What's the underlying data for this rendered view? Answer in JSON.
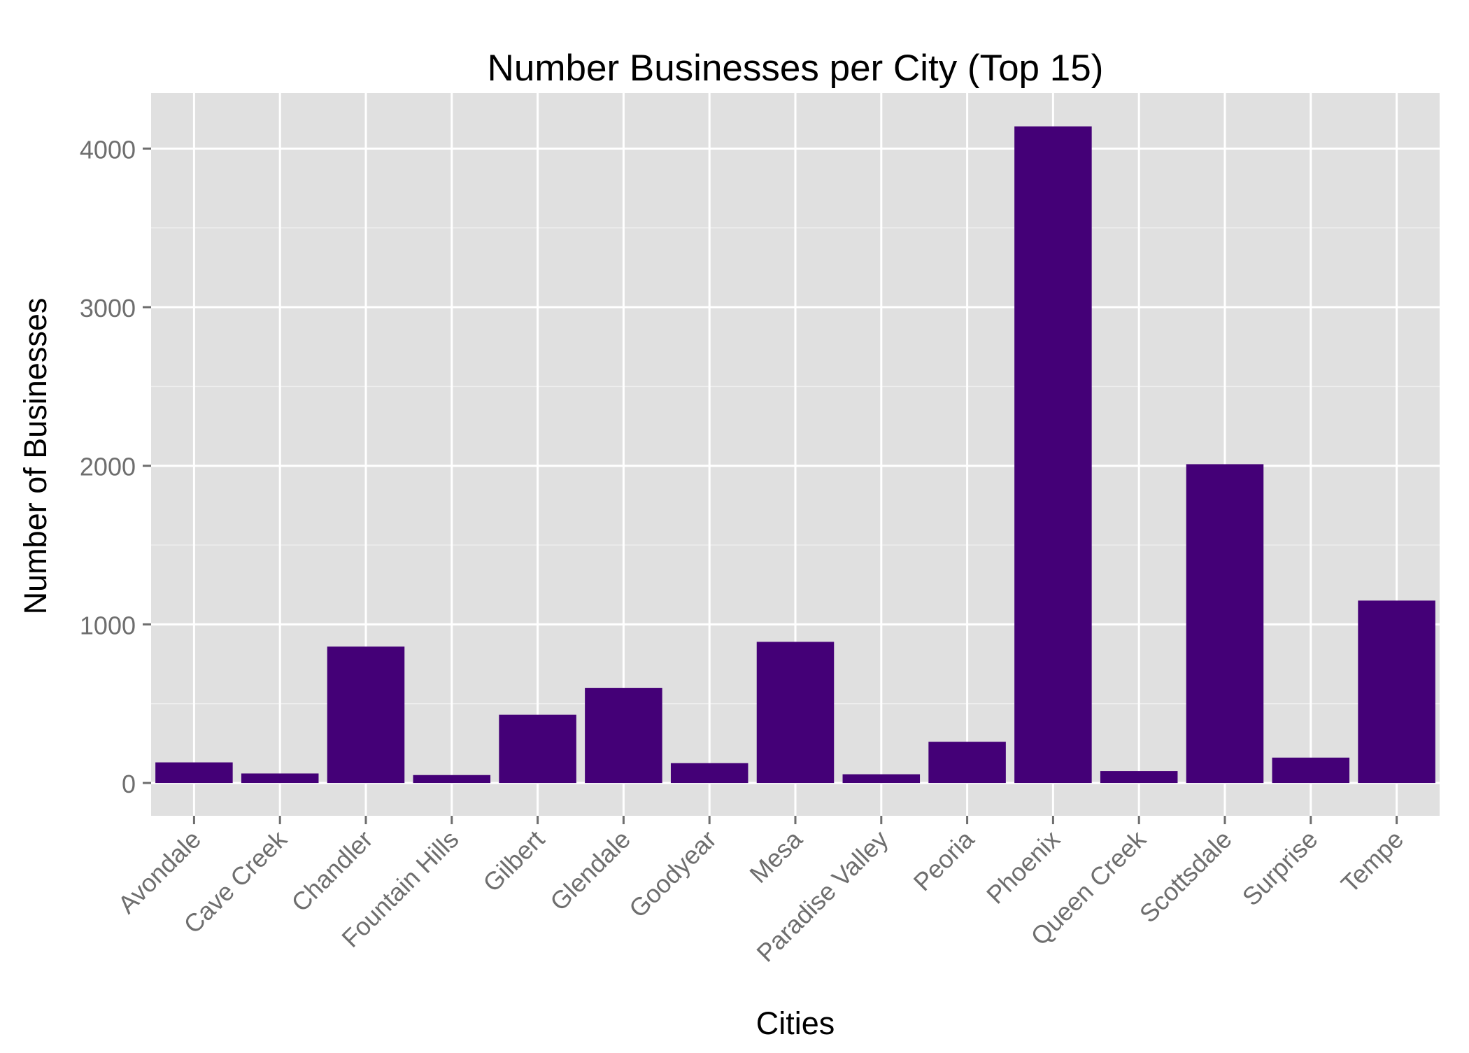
{
  "chart_data": {
    "type": "bar",
    "title": "Number Businesses per City (Top 15)",
    "xlabel": "Cities",
    "ylabel": "Number of Businesses",
    "categories": [
      "Avondale",
      "Cave Creek",
      "Chandler",
      "Fountain Hills",
      "Gilbert",
      "Glendale",
      "Goodyear",
      "Mesa",
      "Paradise Valley",
      "Peoria",
      "Phoenix",
      "Queen Creek",
      "Scottsdale",
      "Surprise",
      "Tempe"
    ],
    "values": [
      130,
      60,
      860,
      50,
      430,
      600,
      125,
      890,
      55,
      260,
      4140,
      75,
      2010,
      160,
      1150
    ],
    "ylim": [
      -207,
      4350
    ],
    "yticks": [
      0,
      1000,
      2000,
      3000,
      4000
    ],
    "ytick_labels": [
      "0",
      "1000",
      "2000",
      "3000",
      "4000"
    ],
    "grid": true,
    "legend": "none",
    "colors": {
      "bar": "#440077",
      "panel": "#e0e0e0",
      "grid_major": "#ffffff",
      "grid_minor": "#eeeeee",
      "tick_label": "#6e6e6e",
      "axis_title": "#000000"
    }
  }
}
